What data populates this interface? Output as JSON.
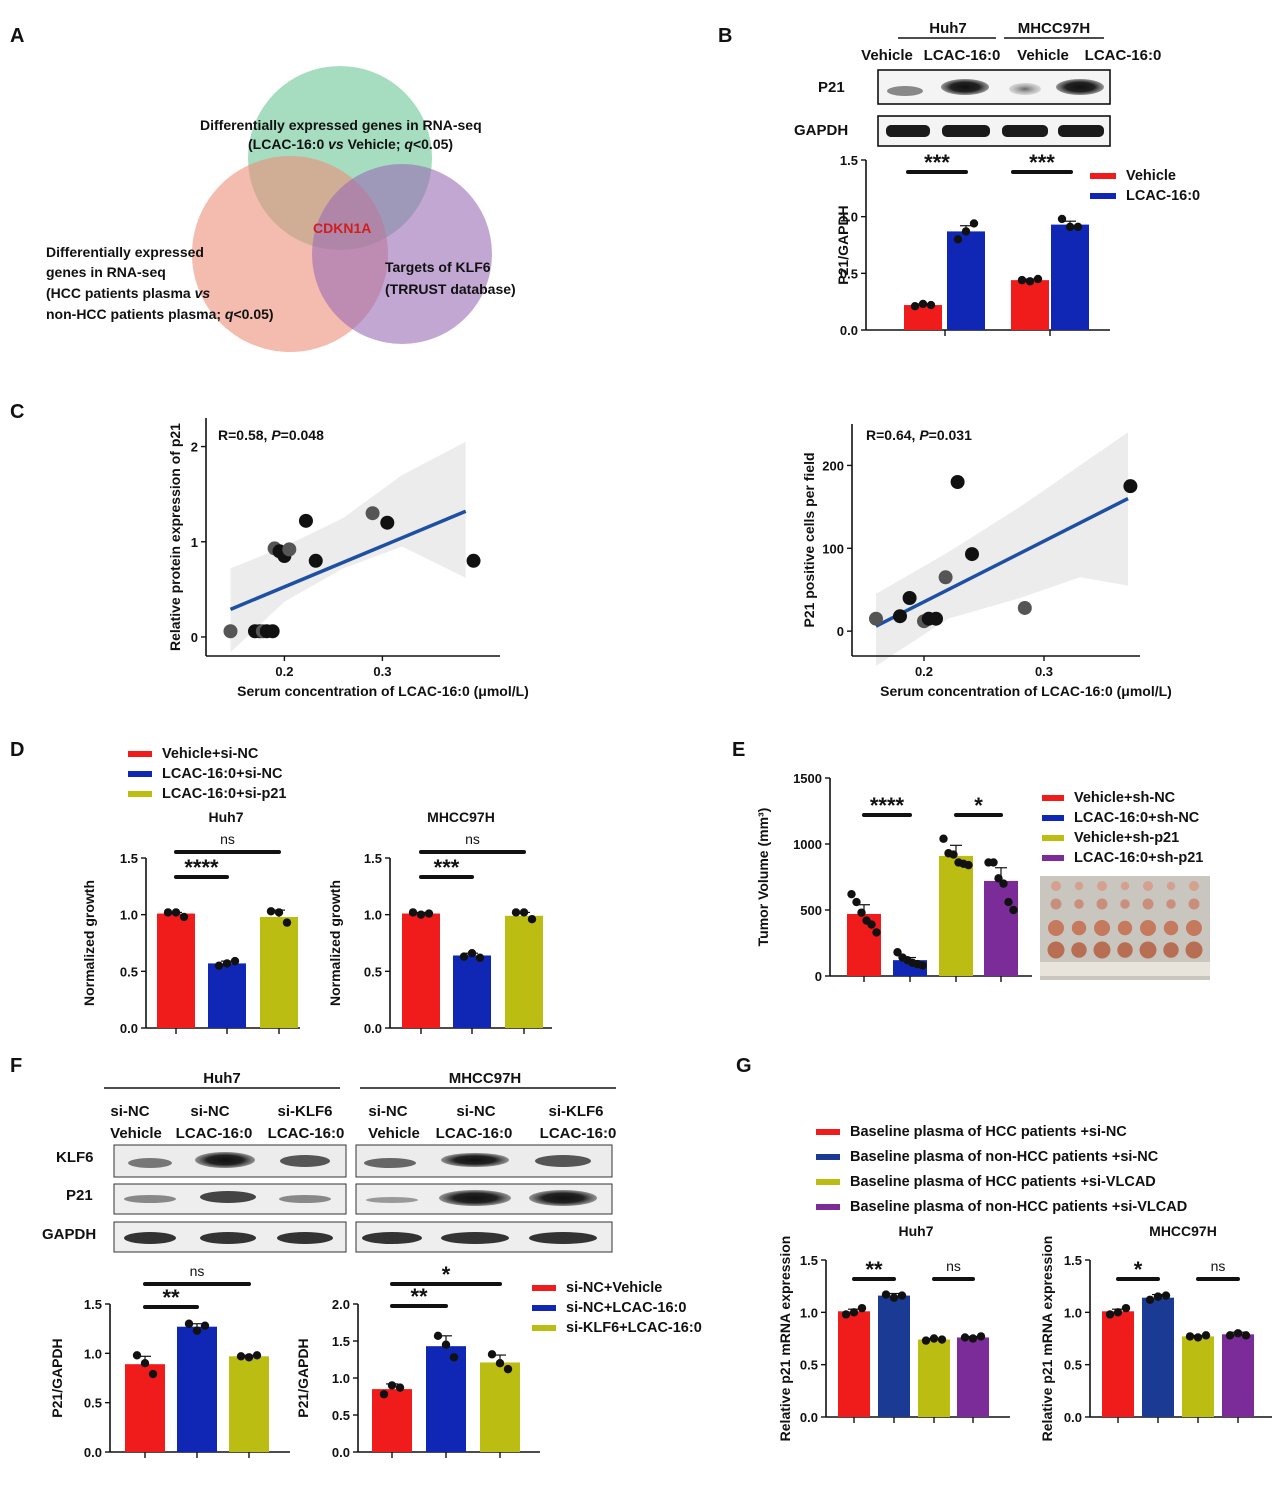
{
  "colors": {
    "red": "#f01c1c",
    "blue": "#0f27b4",
    "olive": "#bcbd12",
    "purple": "#7b2c98",
    "navy": "#1b3a94",
    "green": "#5dbf8b",
    "salmon": "#ec8e79",
    "violet": "#9a6cb6",
    "cdk": "#d01e1e"
  },
  "panels": {
    "A": "A",
    "B": "B",
    "C": "C",
    "D": "D",
    "E": "E",
    "F": "F",
    "G": "G"
  },
  "venn": {
    "top_line1": "Differentially expressed genes in RNA-seq",
    "top_line2": [
      "(LCAC-16:0 ",
      "vs",
      " Vehicle; ",
      "q",
      "<0.05)"
    ],
    "left_lines": [
      "Differentially expressed",
      "genes in RNA-seq"
    ],
    "left_line3": [
      "(HCC patients  plasma  ",
      "vs"
    ],
    "left_line4": [
      "non-HCC patients plasma; ",
      "q",
      "<0.05)"
    ],
    "right_lines": [
      "Targets of KLF6",
      "(TRRUST database)"
    ],
    "center": "CDKN1A"
  },
  "blotB": {
    "groups": [
      "Huh7",
      "MHCC97H"
    ],
    "lanes": [
      "Vehicle",
      "LCAC-16:0",
      "Vehicle",
      "LCAC-16:0"
    ],
    "rows": [
      "P21",
      "GAPDH"
    ]
  },
  "blotF": {
    "groups": [
      "Huh7",
      "MHCC97H"
    ],
    "lanes_top": [
      "si-NC",
      "si-NC",
      "si-KLF6",
      "si-NC",
      "si-NC",
      "si-KLF6"
    ],
    "lanes_bottom": [
      "Vehicle",
      "LCAC-16:0",
      "LCAC-16:0",
      "Vehicle",
      "LCAC-16:0",
      "LCAC-16:0"
    ],
    "rows": [
      "KLF6",
      "P21",
      "GAPDH"
    ]
  },
  "legendD": [
    "Vehicle+si-NC",
    "LCAC-16:0+si-NC",
    "LCAC-16:0+si-p21"
  ],
  "legendE": [
    "Vehicle+sh-NC",
    "LCAC-16:0+sh-NC",
    "Vehicle+sh-p21",
    "LCAC-16:0+sh-p21"
  ],
  "legendF": [
    "si-NC+Vehicle",
    "si-NC+LCAC-16:0",
    "si-KLF6+LCAC-16:0"
  ],
  "legendG": [
    "Baseline plasma of HCC patients +si-NC",
    "Baseline plasma of non-HCC patients +si-NC",
    "Baseline plasma of HCC patients +si-VLCAD",
    "Baseline plasma of non-HCC patients +si-VLCAD"
  ],
  "legendB": [
    "Vehicle",
    "LCAC-16:0"
  ],
  "chart_data": [
    {
      "id": "B",
      "type": "bar",
      "ylabel": "P21/GAPDH",
      "ylim": [
        0,
        1.5
      ],
      "yticks": [
        "0.0",
        "0.5",
        "1.0",
        "1.5"
      ],
      "categories": [
        "Huh7 Vehicle",
        "Huh7 LCAC-16:0",
        "MHCC97H Vehicle",
        "MHCC97H LCAC-16:0"
      ],
      "values": [
        0.22,
        0.87,
        0.44,
        0.93
      ],
      "errors": [
        0.01,
        0.05,
        0.01,
        0.03
      ],
      "points": [
        [
          0.21,
          0.23,
          0.22
        ],
        [
          0.8,
          0.87,
          0.94
        ],
        [
          0.44,
          0.43,
          0.45
        ],
        [
          0.98,
          0.91,
          0.91
        ]
      ],
      "colors": [
        "red",
        "blue",
        "red",
        "blue"
      ],
      "sig": [
        {
          "from": 0,
          "to": 1,
          "label": "***"
        },
        {
          "from": 2,
          "to": 3,
          "label": "***"
        }
      ]
    },
    {
      "id": "C1",
      "type": "scatter",
      "xlabel": "Serum concentration of LCAC-16:0 (μmol/L)",
      "ylabel": "Relative protein expression of p21",
      "xlim": [
        0.12,
        0.42
      ],
      "ylim": [
        -0.2,
        2.3
      ],
      "xticks": [
        "0.2",
        "0.3"
      ],
      "yticks": [
        "0",
        "1",
        "2"
      ],
      "annotation_r": "R=0.58, ",
      "annotation_p_italic": "P",
      "annotation_p_val": "=0.048",
      "x": [
        0.145,
        0.17,
        0.175,
        0.178,
        0.182,
        0.188,
        0.19,
        0.195,
        0.2,
        0.205,
        0.222,
        0.232,
        0.29,
        0.305,
        0.393
      ],
      "y": [
        0.06,
        0.06,
        0.06,
        0.06,
        0.06,
        0.06,
        0.93,
        0.9,
        0.85,
        0.92,
        1.22,
        0.8,
        1.3,
        1.2,
        0.8
      ],
      "fit": {
        "x": [
          0.145,
          0.385
        ],
        "y": [
          0.29,
          1.32
        ]
      },
      "band": {
        "x": [
          0.145,
          0.2,
          0.26,
          0.32,
          0.385
        ],
        "upper": [
          0.72,
          0.95,
          1.25,
          1.7,
          2.05
        ],
        "lower": [
          -0.16,
          0.37,
          0.72,
          0.95,
          0.62
        ]
      }
    },
    {
      "id": "C2",
      "type": "scatter",
      "xlabel": "Serum concentration of LCAC-16:0 (μmol/L)",
      "ylabel": "P21 positive cells per field",
      "xlim": [
        0.14,
        0.38
      ],
      "ylim": [
        -30,
        250
      ],
      "xticks": [
        "0.2",
        "0.3"
      ],
      "yticks": [
        "0",
        "100",
        "200"
      ],
      "annotation_r": "R=0.64, ",
      "annotation_p_italic": "P",
      "annotation_p_val": "=0.031",
      "x": [
        0.16,
        0.18,
        0.188,
        0.2,
        0.204,
        0.21,
        0.218,
        0.228,
        0.24,
        0.284,
        0.372
      ],
      "y": [
        15,
        18,
        40,
        12,
        15,
        15,
        65,
        180,
        93,
        28,
        175
      ],
      "fit": {
        "x": [
          0.16,
          0.37
        ],
        "y": [
          6,
          160
        ]
      },
      "band": {
        "x": [
          0.16,
          0.22,
          0.28,
          0.33,
          0.37
        ],
        "upper": [
          45,
          95,
          150,
          200,
          240
        ],
        "lower": [
          -42,
          15,
          40,
          65,
          55
        ]
      }
    },
    {
      "id": "D1",
      "type": "bar",
      "title": "Huh7",
      "ylabel": "Normalized growth",
      "ylim": [
        0,
        1.5
      ],
      "yticks": [
        "0.0",
        "0.5",
        "1.0",
        "1.5"
      ],
      "categories": [
        "Vehicle+si-NC",
        "LCAC-16:0+si-NC",
        "LCAC-16:0+si-p21"
      ],
      "values": [
        1.01,
        0.57,
        0.98
      ],
      "errors": [
        0.01,
        0.02,
        0.06
      ],
      "points": [
        [
          1.02,
          1.02,
          0.98
        ],
        [
          0.55,
          0.57,
          0.59
        ],
        [
          1.03,
          1.02,
          0.93
        ]
      ],
      "colors": [
        "red",
        "blue",
        "olive"
      ],
      "sig": [
        {
          "from": 0,
          "to": 1,
          "label": "****"
        },
        {
          "from": 0,
          "to": 2,
          "label": "ns"
        }
      ]
    },
    {
      "id": "D2",
      "type": "bar",
      "title": "MHCC97H",
      "ylabel": "Normalized growth",
      "ylim": [
        0,
        1.5
      ],
      "yticks": [
        "0.0",
        "0.5",
        "1.0",
        "1.5"
      ],
      "categories": [
        "Vehicle+si-NC",
        "LCAC-16:0+si-NC",
        "LCAC-16:0+si-p21"
      ],
      "values": [
        1.01,
        0.64,
        0.99
      ],
      "errors": [
        0.01,
        0.02,
        0.03
      ],
      "points": [
        [
          1.02,
          1.0,
          1.01
        ],
        [
          0.63,
          0.66,
          0.62
        ],
        [
          1.02,
          1.02,
          0.96
        ]
      ],
      "colors": [
        "red",
        "blue",
        "olive"
      ],
      "sig": [
        {
          "from": 0,
          "to": 1,
          "label": "***"
        },
        {
          "from": 0,
          "to": 2,
          "label": "ns"
        }
      ]
    },
    {
      "id": "E",
      "type": "bar",
      "ylabel": "Tumor Volume (mm³)",
      "ylim": [
        0,
        1500
      ],
      "yticks": [
        "0",
        "500",
        "1000",
        "1500"
      ],
      "categories": [
        "Vehicle+sh-NC",
        "LCAC-16:0+sh-NC",
        "Vehicle+sh-p21",
        "LCAC-16:0+sh-p21"
      ],
      "values": [
        470,
        120,
        910,
        720
      ],
      "errors": [
        70,
        20,
        80,
        100
      ],
      "points": [
        [
          620,
          560,
          480,
          420,
          390,
          330
        ],
        [
          180,
          140,
          120,
          100,
          90,
          80
        ],
        [
          1040,
          930,
          920,
          860,
          850,
          840
        ],
        [
          860,
          860,
          740,
          700,
          560,
          500
        ]
      ],
      "colors": [
        "red",
        "blue",
        "olive",
        "purple"
      ],
      "sig": [
        {
          "from": 0,
          "to": 1,
          "label": "****"
        },
        {
          "from": 2,
          "to": 3,
          "label": "*"
        }
      ]
    },
    {
      "id": "F1",
      "type": "bar",
      "ylabel": "P21/GAPDH",
      "ylim": [
        0,
        1.5
      ],
      "yticks": [
        "0.0",
        "0.5",
        "1.0",
        "1.5"
      ],
      "categories": [
        "si-NC+Vehicle",
        "si-NC+LCAC-16:0",
        "si-KLF6+LCAC-16:0"
      ],
      "values": [
        0.89,
        1.27,
        0.97
      ],
      "errors": [
        0.08,
        0.03,
        0.01
      ],
      "points": [
        [
          0.98,
          0.9,
          0.79
        ],
        [
          1.3,
          1.23,
          1.28
        ],
        [
          0.97,
          0.96,
          0.98
        ]
      ],
      "colors": [
        "red",
        "blue",
        "olive"
      ],
      "sig": [
        {
          "from": 0,
          "to": 1,
          "label": "**"
        },
        {
          "from": 0,
          "to": 2,
          "label": "ns"
        }
      ]
    },
    {
      "id": "F2",
      "type": "bar",
      "ylabel": "P21/GAPDH",
      "ylim": [
        0,
        2.0
      ],
      "yticks": [
        "0.0",
        "0.5",
        "1.0",
        "1.5",
        "2.0"
      ],
      "categories": [
        "si-NC+Vehicle",
        "si-NC+LCAC-16:0",
        "si-KLF6+LCAC-16:0"
      ],
      "values": [
        0.85,
        1.43,
        1.21
      ],
      "errors": [
        0.07,
        0.14,
        0.1
      ],
      "points": [
        [
          0.78,
          0.9,
          0.87
        ],
        [
          1.57,
          1.45,
          1.28
        ],
        [
          1.32,
          1.2,
          1.12
        ]
      ],
      "colors": [
        "red",
        "blue",
        "olive"
      ],
      "sig": [
        {
          "from": 0,
          "to": 1,
          "label": "**"
        },
        {
          "from": 0,
          "to": 2,
          "label": "*"
        }
      ]
    },
    {
      "id": "G1",
      "type": "bar",
      "title": "Huh7",
      "ylabel": "Relative p21 mRNA expression",
      "ylim": [
        0,
        1.5
      ],
      "yticks": [
        "0.0",
        "0.5",
        "1.0",
        "1.5"
      ],
      "categories": [
        "HCC+si-NC",
        "non-HCC+si-NC",
        "HCC+si-VLCAD",
        "non-HCC+si-VLCAD"
      ],
      "values": [
        1.01,
        1.16,
        0.74,
        0.76
      ],
      "errors": [
        0.02,
        0.02,
        0.01,
        0.01
      ],
      "points": [
        [
          0.98,
          1.0,
          1.04
        ],
        [
          1.17,
          1.14,
          1.16
        ],
        [
          0.73,
          0.75,
          0.74
        ],
        [
          0.76,
          0.75,
          0.77
        ]
      ],
      "colors": [
        "red",
        "navy",
        "olive",
        "purple"
      ],
      "sig": [
        {
          "from": 0,
          "to": 1,
          "label": "**"
        },
        {
          "from": 2,
          "to": 3,
          "label": "ns"
        }
      ]
    },
    {
      "id": "G2",
      "type": "bar",
      "title": "MHCC97H",
      "ylabel": "Relative p21 mRNA expression",
      "ylim": [
        0,
        1.5
      ],
      "yticks": [
        "0.0",
        "0.5",
        "1.0",
        "1.5"
      ],
      "categories": [
        "HCC+si-NC",
        "non-HCC+si-NC",
        "HCC+si-VLCAD",
        "non-HCC+si-VLCAD"
      ],
      "values": [
        1.01,
        1.14,
        0.77,
        0.79
      ],
      "errors": [
        0.02,
        0.03,
        0.01,
        0.02
      ],
      "points": [
        [
          0.98,
          1.0,
          1.04
        ],
        [
          1.12,
          1.15,
          1.16
        ],
        [
          0.77,
          0.76,
          0.78
        ],
        [
          0.78,
          0.8,
          0.78
        ]
      ],
      "colors": [
        "red",
        "navy",
        "olive",
        "purple"
      ],
      "sig": [
        {
          "from": 0,
          "to": 1,
          "label": "*"
        },
        {
          "from": 2,
          "to": 3,
          "label": "ns"
        }
      ]
    }
  ]
}
